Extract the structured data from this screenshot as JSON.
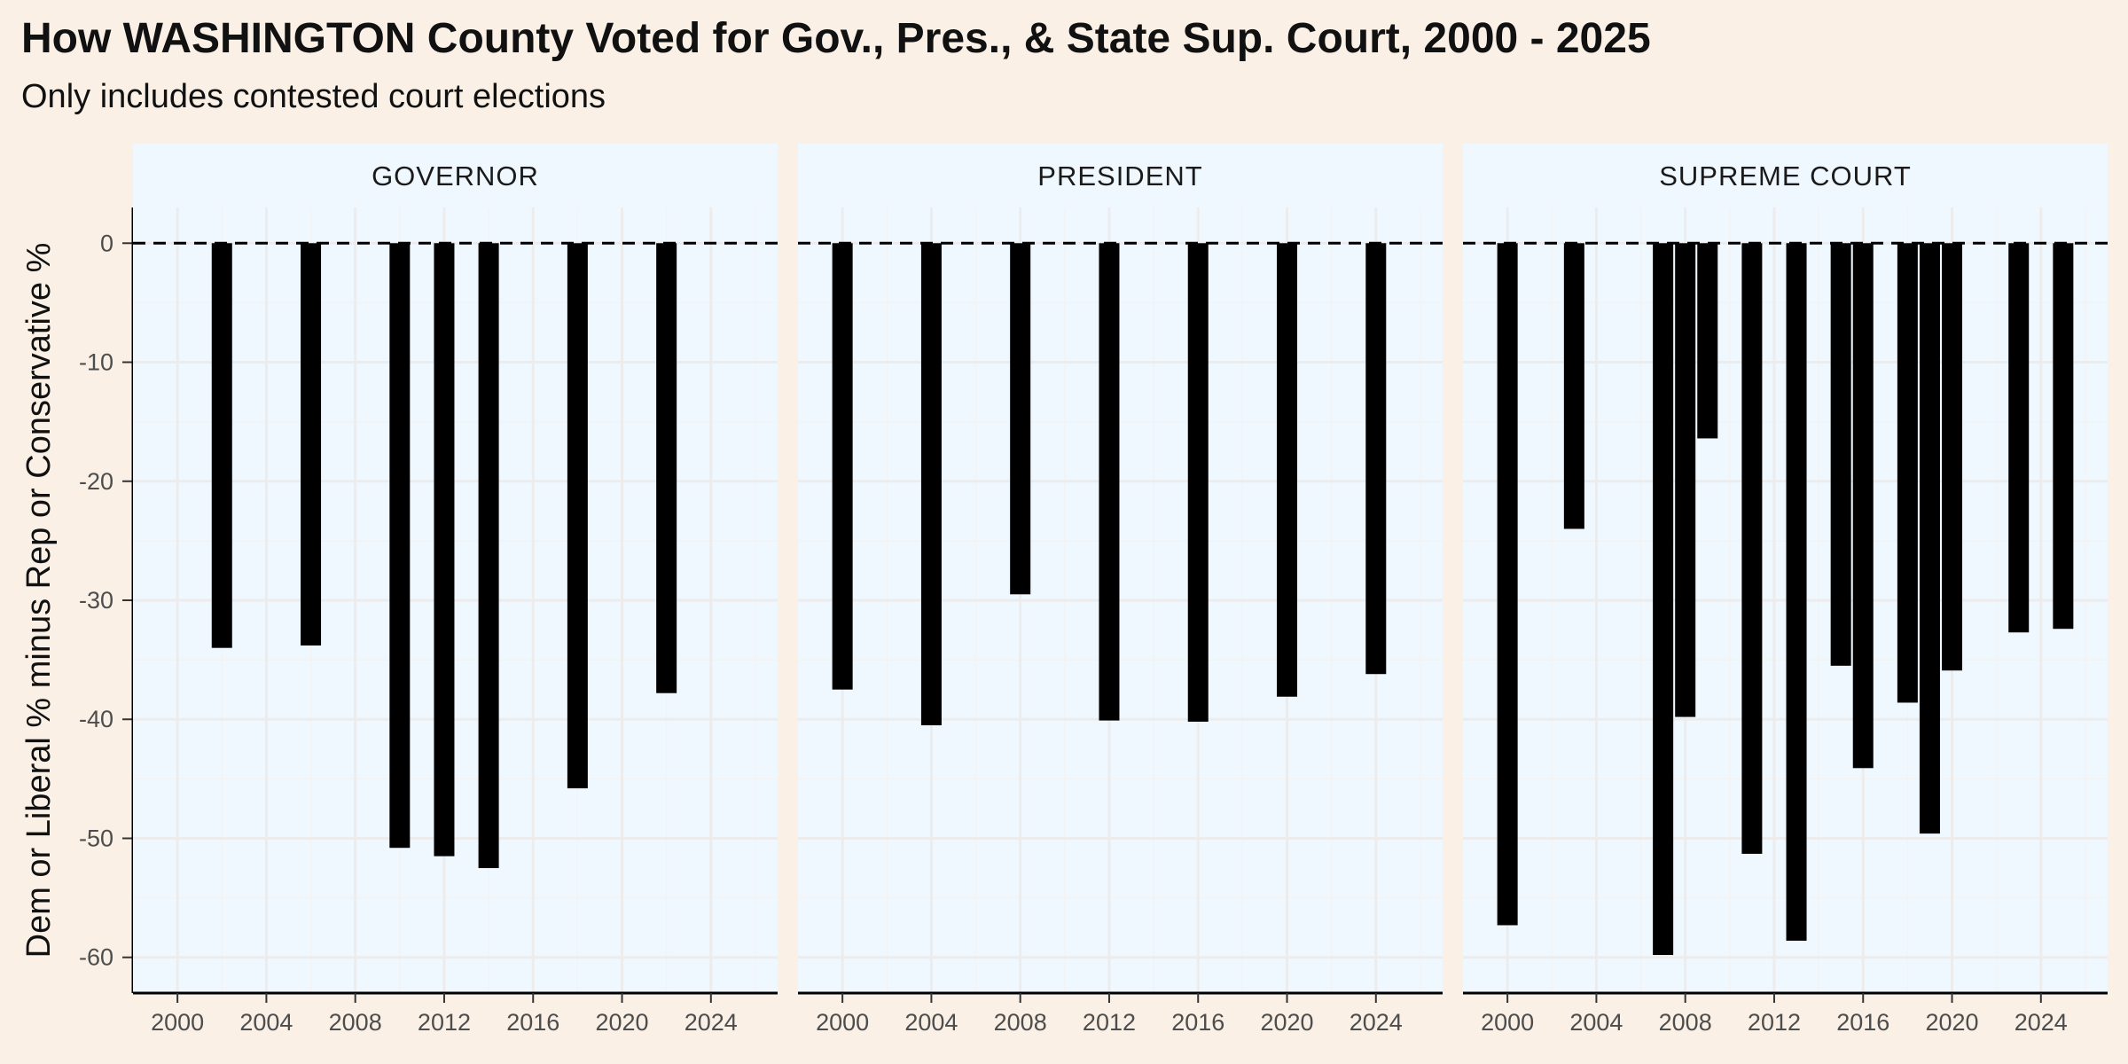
{
  "chart_data": {
    "type": "bar",
    "title": "How WASHINGTON County Voted for Gov., Pres., & State Sup. Court, 2000 - 2025",
    "subtitle": "Only includes contested court elections",
    "ylabel": "Dem or Liberal % minus Rep or Conservative %",
    "xlabel": "",
    "xlim": [
      1998,
      2027
    ],
    "ylim": [
      -63,
      3
    ],
    "x_ticks": [
      2000,
      2004,
      2008,
      2012,
      2016,
      2020,
      2024
    ],
    "y_ticks": [
      0,
      -10,
      -20,
      -30,
      -40,
      -50,
      -60
    ],
    "reference_line": 0,
    "grid": true,
    "colors": {
      "bar": "#000000",
      "panel": "#f0f8ff",
      "strip": "#f0f8ff",
      "background": "#faf0e6",
      "grid": "#ececec"
    },
    "panels": [
      {
        "name": "GOVERNOR",
        "x": [
          2002,
          2006,
          2010,
          2012,
          2014,
          2018,
          2022
        ],
        "values": [
          -34,
          -33.8,
          -50.8,
          -51.5,
          -52.5,
          -45.8,
          -37.8
        ]
      },
      {
        "name": "PRESIDENT",
        "x": [
          2000,
          2004,
          2008,
          2012,
          2016,
          2020,
          2024
        ],
        "values": [
          -37.5,
          -40.5,
          -29.5,
          -40.1,
          -40.2,
          -38.1,
          -36.2
        ]
      },
      {
        "name": "SUPREME COURT",
        "x": [
          2000,
          2003,
          2007,
          2008,
          2009,
          2011,
          2013,
          2015,
          2016,
          2018,
          2019,
          2020,
          2023,
          2025
        ],
        "values": [
          -57.3,
          -24,
          -59.8,
          -39.8,
          -16.4,
          -51.3,
          -58.6,
          -35.5,
          -44.1,
          -38.6,
          -49.6,
          -35.9,
          -32.7,
          -32.4
        ]
      }
    ]
  }
}
